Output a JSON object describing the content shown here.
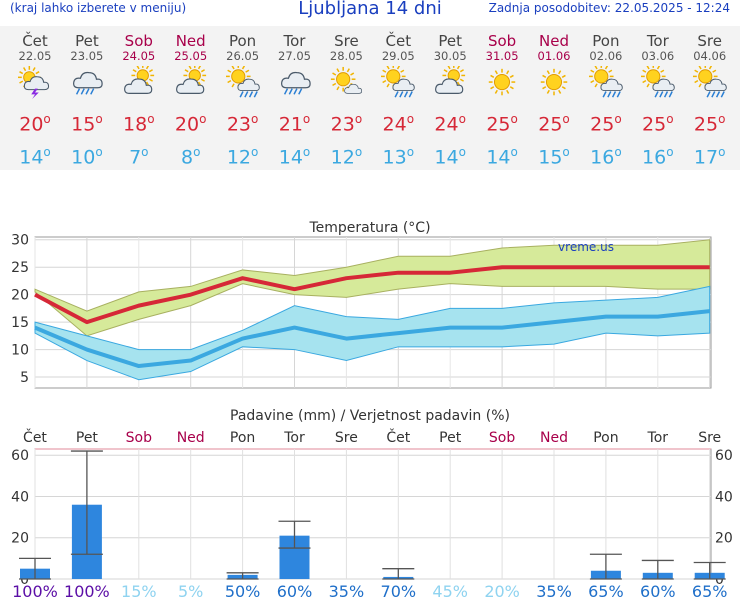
{
  "header": {
    "left_note": "(kraj lahko izberete v meniju)",
    "title": "Ljubljana 14 dni",
    "updated": "Zadnja posodobitev: 22.05.2025 - 12:24"
  },
  "days": [
    {
      "name": "Čet",
      "date": "22.05",
      "icon": "sun-cloud-storm-icon",
      "tmax": "20",
      "tmin": "14",
      "weekend": false
    },
    {
      "name": "Pet",
      "date": "23.05",
      "icon": "cloud-rain-icon",
      "tmax": "15",
      "tmin": "10",
      "weekend": false
    },
    {
      "name": "Sob",
      "date": "24.05",
      "icon": "sun-cloud-icon",
      "tmax": "18",
      "tmin": "7",
      "weekend": true
    },
    {
      "name": "Ned",
      "date": "25.05",
      "icon": "sun-cloud-icon",
      "tmax": "20",
      "tmin": "8",
      "weekend": true
    },
    {
      "name": "Pon",
      "date": "26.05",
      "icon": "sun-cloud-rain-icon",
      "tmax": "23",
      "tmin": "12",
      "weekend": false
    },
    {
      "name": "Tor",
      "date": "27.05",
      "icon": "cloud-rain-icon",
      "tmax": "21",
      "tmin": "14",
      "weekend": false
    },
    {
      "name": "Sre",
      "date": "28.05",
      "icon": "sun-small-cloud-icon",
      "tmax": "23",
      "tmin": "12",
      "weekend": false
    },
    {
      "name": "Čet",
      "date": "29.05",
      "icon": "sun-cloud-rain-icon",
      "tmax": "24",
      "tmin": "13",
      "weekend": false
    },
    {
      "name": "Pet",
      "date": "30.05",
      "icon": "sun-cloud-icon",
      "tmax": "24",
      "tmin": "14",
      "weekend": false
    },
    {
      "name": "Sob",
      "date": "31.05",
      "icon": "sun-icon",
      "tmax": "25",
      "tmin": "14",
      "weekend": true
    },
    {
      "name": "Ned",
      "date": "01.06",
      "icon": "sun-icon",
      "tmax": "25",
      "tmin": "15",
      "weekend": true
    },
    {
      "name": "Pon",
      "date": "02.06",
      "icon": "sun-cloud-rain-icon",
      "tmax": "25",
      "tmin": "16",
      "weekend": false
    },
    {
      "name": "Tor",
      "date": "03.06",
      "icon": "sun-cloud-rain-icon",
      "tmax": "25",
      "tmin": "16",
      "weekend": false
    },
    {
      "name": "Sre",
      "date": "04.06",
      "icon": "sun-cloud-rain-icon",
      "tmax": "25",
      "tmin": "17",
      "weekend": false
    }
  ],
  "degree_symbol": "o",
  "colors": {
    "max": "#d62837",
    "min": "#3ba8e0",
    "weekend": "#a8004a",
    "precip": "#2e86de",
    "prob_high": "#5b0ea6",
    "prob_mid": "#1f6fc9",
    "prob_low": "#8fd3f0"
  },
  "chart_data": [
    {
      "type": "line",
      "title": "Temperatura (°C)",
      "watermark": "vreme.us",
      "x": [
        "22.05",
        "23.05",
        "24.05",
        "25.05",
        "26.05",
        "27.05",
        "28.05",
        "29.05",
        "30.05",
        "31.05",
        "01.06",
        "02.06",
        "03.06",
        "04.06"
      ],
      "ylim": [
        3,
        30.5
      ],
      "yticks": [
        5,
        10,
        15,
        20,
        25,
        30
      ],
      "grid": true,
      "series": [
        {
          "role": "max",
          "values": [
            20,
            15,
            18,
            20,
            23,
            21,
            23,
            24,
            24,
            25,
            25,
            25,
            25,
            25
          ],
          "range_low": [
            20.5,
            12.5,
            15.5,
            18,
            22,
            20,
            19.5,
            21,
            22,
            21.5,
            21.5,
            21.5,
            21,
            21
          ],
          "range_high": [
            21,
            17,
            20.5,
            21.5,
            24.5,
            23.5,
            25,
            27,
            27,
            28.5,
            29,
            29,
            29,
            30
          ]
        },
        {
          "role": "min",
          "values": [
            14,
            10,
            7,
            8,
            12,
            14,
            12,
            13,
            14,
            14,
            15,
            16,
            16,
            17
          ],
          "range_low": [
            13,
            8,
            4.5,
            6,
            10.5,
            10,
            8,
            10.5,
            10.5,
            10.5,
            11,
            13,
            12.5,
            13
          ],
          "range_high": [
            15,
            12.5,
            10,
            10,
            13.5,
            18,
            16,
            15.5,
            17.5,
            17.5,
            18.5,
            19,
            19.5,
            21.5
          ]
        }
      ]
    },
    {
      "type": "bar",
      "title": "Padavine (mm) / Verjetnost padavin (%)",
      "categories": [
        "Čet",
        "Pet",
        "Sob",
        "Ned",
        "Pon",
        "Tor",
        "Sre",
        "Čet",
        "Pet",
        "Sob",
        "Ned",
        "Pon",
        "Tor",
        "Sre"
      ],
      "weekend": [
        false,
        false,
        true,
        true,
        false,
        false,
        false,
        false,
        false,
        true,
        true,
        false,
        false,
        false
      ],
      "ylim": [
        0,
        63
      ],
      "yticks": [
        0,
        20,
        40,
        60
      ],
      "values": [
        5,
        36,
        0,
        0,
        2,
        21,
        0,
        1,
        0,
        0,
        0,
        4,
        3,
        3
      ],
      "err_low": [
        0,
        12,
        0,
        0,
        0,
        15,
        0,
        0,
        0,
        0,
        0,
        0,
        0,
        0
      ],
      "err_high": [
        10,
        62,
        0,
        0,
        3,
        28,
        0,
        5,
        0,
        0,
        0,
        12,
        9,
        8
      ],
      "probability": [
        "100%",
        "100%",
        "15%",
        "5%",
        "50%",
        "60%",
        "35%",
        "70%",
        "45%",
        "20%",
        "35%",
        "65%",
        "60%",
        "65%"
      ]
    }
  ]
}
